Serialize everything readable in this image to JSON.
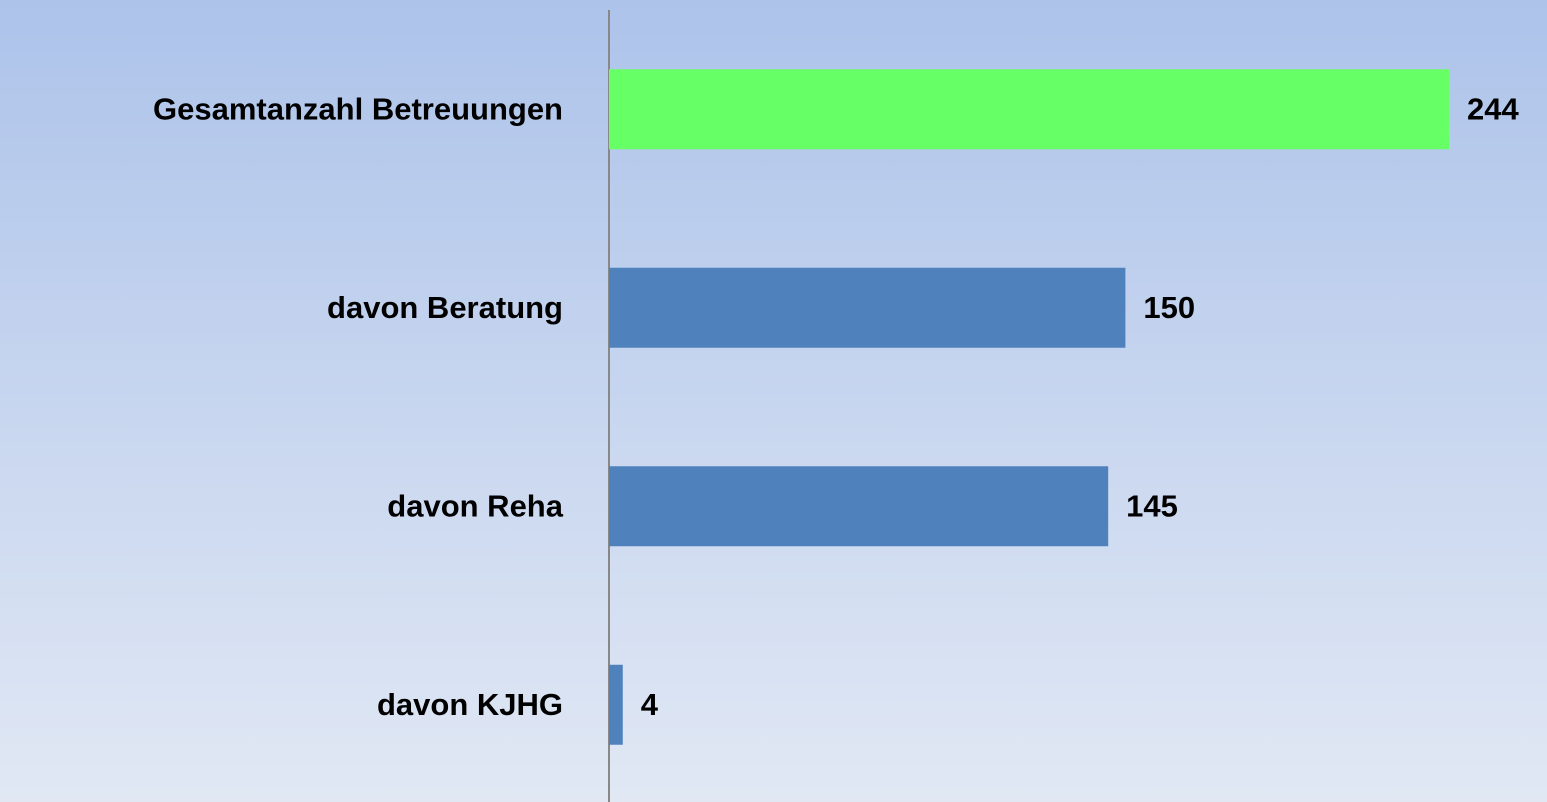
{
  "chart_data": {
    "type": "bar",
    "orientation": "horizontal",
    "categories": [
      "Gesamtanzahl Betreuungen",
      "davon Beratung",
      "davon Reha",
      "davon KJHG"
    ],
    "values": [
      244,
      150,
      145,
      4
    ],
    "colors": [
      "#66ff66",
      "#4f81bd",
      "#4f81bd",
      "#4f81bd"
    ]
  }
}
